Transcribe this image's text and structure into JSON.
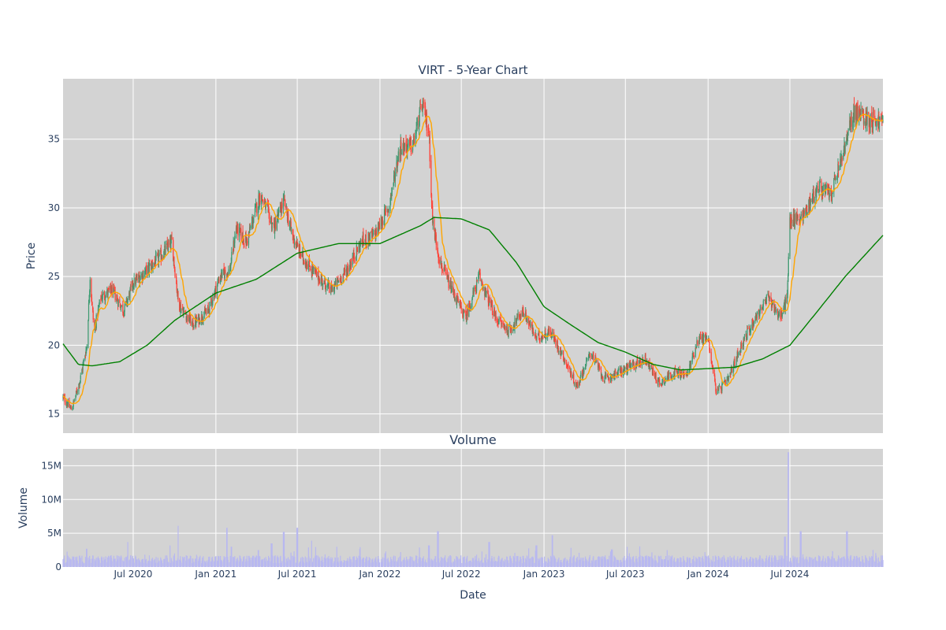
{
  "chart_data": [
    {
      "type": "candlestick",
      "title": "VIRT - 5-Year Chart",
      "ylabel": "Price",
      "xlabel": "",
      "ylim": [
        13.6,
        39.4
      ],
      "xlim": [
        "2020-01-27",
        "2025-01-24"
      ],
      "grid": true,
      "yticks": [
        15,
        20,
        25,
        30,
        35
      ],
      "xticks": [
        "2020-07-01",
        "2021-01-01",
        "2021-07-01",
        "2022-01-01",
        "2022-07-01",
        "2023-01-01",
        "2023-07-01",
        "2024-01-01",
        "2024-07-01"
      ],
      "colors": {
        "increasing": "#3d9970",
        "decreasing": "#ff4136",
        "ma_short": "#ffa500",
        "ma_long": "#008000",
        "plot_bg": "#d3d3d3"
      },
      "close_anchors": [
        [
          "2020-01-27",
          16.2
        ],
        [
          "2020-02-15",
          15.3
        ],
        [
          "2020-03-05",
          17.5
        ],
        [
          "2020-03-20",
          20.0
        ],
        [
          "2020-03-27",
          25.0
        ],
        [
          "2020-04-05",
          21.0
        ],
        [
          "2020-04-20",
          23.5
        ],
        [
          "2020-05-15",
          24.0
        ],
        [
          "2020-06-10",
          22.5
        ],
        [
          "2020-07-01",
          24.5
        ],
        [
          "2020-08-01",
          25.5
        ],
        [
          "2020-09-01",
          26.5
        ],
        [
          "2020-09-25",
          27.5
        ],
        [
          "2020-10-10",
          23.0
        ],
        [
          "2020-11-10",
          21.5
        ],
        [
          "2020-12-15",
          22.5
        ],
        [
          "2021-01-10",
          25.0
        ],
        [
          "2021-02-01",
          25.5
        ],
        [
          "2021-02-15",
          28.5
        ],
        [
          "2021-03-10",
          27.5
        ],
        [
          "2021-04-10",
          31.0
        ],
        [
          "2021-05-10",
          28.5
        ],
        [
          "2021-06-01",
          30.5
        ],
        [
          "2021-06-20",
          28.0
        ],
        [
          "2021-07-10",
          26.5
        ],
        [
          "2021-08-15",
          25.0
        ],
        [
          "2021-09-15",
          24.0
        ],
        [
          "2021-10-20",
          25.5
        ],
        [
          "2021-11-20",
          27.5
        ],
        [
          "2021-12-20",
          28.0
        ],
        [
          "2022-01-20",
          30.0
        ],
        [
          "2022-02-15",
          34.5
        ],
        [
          "2022-03-15",
          34.5
        ],
        [
          "2022-04-05",
          37.5
        ],
        [
          "2022-04-20",
          35.5
        ],
        [
          "2022-04-28",
          29.0
        ],
        [
          "2022-05-15",
          26.0
        ],
        [
          "2022-06-10",
          24.0
        ],
        [
          "2022-07-10",
          22.0
        ],
        [
          "2022-08-10",
          25.0
        ],
        [
          "2022-09-15",
          22.0
        ],
        [
          "2022-10-15",
          21.0
        ],
        [
          "2022-11-15",
          22.5
        ],
        [
          "2022-12-15",
          20.5
        ],
        [
          "2023-01-15",
          21.0
        ],
        [
          "2023-02-15",
          19.0
        ],
        [
          "2023-03-15",
          17.0
        ],
        [
          "2023-04-15",
          19.5
        ],
        [
          "2023-05-15",
          17.5
        ],
        [
          "2023-06-15",
          18.0
        ],
        [
          "2023-07-15",
          18.5
        ],
        [
          "2023-08-15",
          19.0
        ],
        [
          "2023-09-15",
          17.2
        ],
        [
          "2023-10-15",
          18.0
        ],
        [
          "2023-11-15",
          17.8
        ],
        [
          "2023-12-10",
          20.5
        ],
        [
          "2024-01-01",
          20.5
        ],
        [
          "2024-01-20",
          16.5
        ],
        [
          "2024-02-15",
          17.5
        ],
        [
          "2024-03-15",
          20.0
        ],
        [
          "2024-04-15",
          22.0
        ],
        [
          "2024-05-15",
          23.5
        ],
        [
          "2024-06-10",
          22.0
        ],
        [
          "2024-06-25",
          23.5
        ],
        [
          "2024-07-01",
          29.0
        ],
        [
          "2024-08-01",
          29.5
        ],
        [
          "2024-09-01",
          31.5
        ],
        [
          "2024-10-01",
          31.0
        ],
        [
          "2024-11-01",
          34.5
        ],
        [
          "2024-11-20",
          37.0
        ],
        [
          "2024-12-20",
          36.5
        ],
        [
          "2025-01-24",
          36.3
        ]
      ],
      "ma_long_anchors": [
        [
          "2020-01-27",
          20.1
        ],
        [
          "2020-03-01",
          18.6
        ],
        [
          "2020-04-01",
          18.5
        ],
        [
          "2020-06-01",
          18.8
        ],
        [
          "2020-08-01",
          20.0
        ],
        [
          "2020-10-01",
          21.8
        ],
        [
          "2021-01-01",
          23.8
        ],
        [
          "2021-04-01",
          24.8
        ],
        [
          "2021-07-01",
          26.7
        ],
        [
          "2021-10-01",
          27.4
        ],
        [
          "2022-01-01",
          27.4
        ],
        [
          "2022-04-01",
          28.7
        ],
        [
          "2022-05-01",
          29.3
        ],
        [
          "2022-07-01",
          29.2
        ],
        [
          "2022-09-01",
          28.4
        ],
        [
          "2022-11-01",
          26.0
        ],
        [
          "2023-01-01",
          22.8
        ],
        [
          "2023-03-01",
          21.5
        ],
        [
          "2023-05-01",
          20.2
        ],
        [
          "2023-07-01",
          19.5
        ],
        [
          "2023-09-01",
          18.6
        ],
        [
          "2023-11-01",
          18.2
        ],
        [
          "2024-01-01",
          18.3
        ],
        [
          "2024-03-01",
          18.4
        ],
        [
          "2024-05-01",
          19.0
        ],
        [
          "2024-07-01",
          20.0
        ],
        [
          "2024-09-01",
          22.5
        ],
        [
          "2024-11-01",
          25.0
        ],
        [
          "2025-01-24",
          28.0
        ]
      ]
    },
    {
      "type": "bar",
      "title": "Volume",
      "ylabel": "Volume",
      "xlabel": "Date",
      "ylim": [
        0,
        17500000
      ],
      "grid": true,
      "yticks": [
        0,
        5000000,
        10000000,
        15000000
      ],
      "ytick_labels": [
        "0",
        "5M",
        "10M",
        "15M"
      ],
      "xtick_labels": [
        "Jul 2020",
        "Jan 2021",
        "Jul 2021",
        "Jan 2022",
        "Jul 2022",
        "Jan 2023",
        "Jul 2023",
        "Jan 2024",
        "Jul 2024"
      ],
      "color": "#b8b8f0",
      "typical_volume": 1200000,
      "spikes": [
        [
          "2020-03-20",
          2700000
        ],
        [
          "2020-06-20",
          3700000
        ],
        [
          "2020-09-20",
          3200000
        ],
        [
          "2020-10-10",
          6100000
        ],
        [
          "2021-01-25",
          5800000
        ],
        [
          "2021-02-05",
          3000000
        ],
        [
          "2021-04-05",
          2500000
        ],
        [
          "2021-05-05",
          3500000
        ],
        [
          "2021-06-01",
          5200000
        ],
        [
          "2021-07-01",
          5800000
        ],
        [
          "2021-08-01",
          3900000
        ],
        [
          "2022-01-15",
          2300000
        ],
        [
          "2022-04-20",
          3200000
        ],
        [
          "2022-05-10",
          5300000
        ],
        [
          "2022-09-01",
          3700000
        ],
        [
          "2022-12-15",
          3200000
        ],
        [
          "2023-01-20",
          4700000
        ],
        [
          "2023-06-01",
          2600000
        ],
        [
          "2023-10-01",
          2500000
        ],
        [
          "2024-06-20",
          4500000
        ],
        [
          "2024-06-28",
          17000000
        ],
        [
          "2024-07-25",
          5300000
        ],
        [
          "2024-11-05",
          5300000
        ]
      ]
    }
  ]
}
